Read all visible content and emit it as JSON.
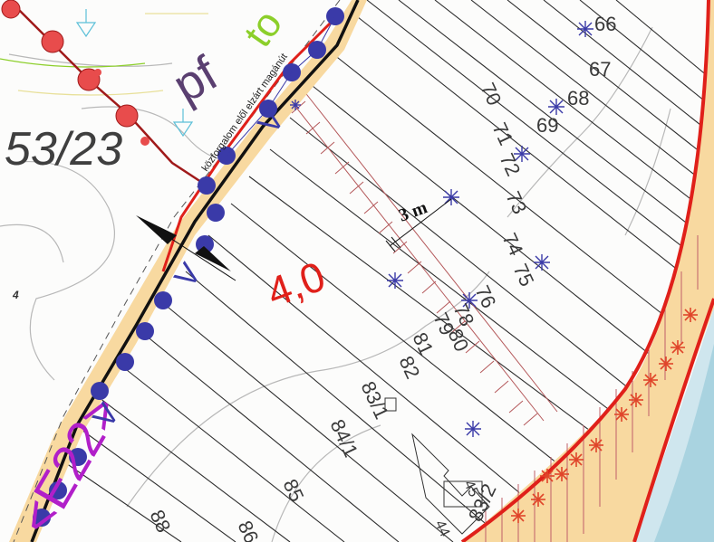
{
  "map": {
    "parcel_main": "53/23",
    "land_use_code": "pf",
    "road_code": "<E22>",
    "width_value": "4,0",
    "dimension": "3 m",
    "road_text": "közforgalom elől elzárt magánút",
    "v_marks": [
      "V",
      "V",
      "V"
    ],
    "green_mark": "to",
    "small_number": "4",
    "lots": [
      "66",
      "67",
      "68",
      "69",
      "70",
      "71",
      "72",
      "73",
      "74",
      "75",
      "76",
      "78",
      "79",
      "80",
      "81",
      "82",
      "83/1",
      "84/1",
      "85",
      "86",
      "88",
      "45",
      "44",
      "83/2"
    ]
  },
  "colors": {
    "road_fill": "#f8d9a0",
    "boundary_red": "#e0201a",
    "river": "#a9d3e0",
    "marker_blue": "#3a3aa8",
    "marker_red": "#e84c4c",
    "hatch": "#b4585a"
  }
}
